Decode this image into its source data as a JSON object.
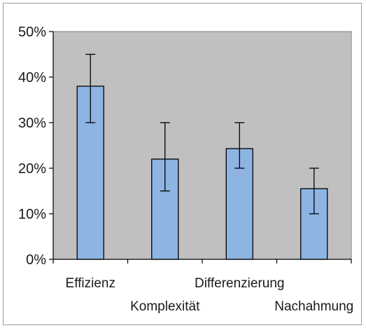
{
  "chart_data": {
    "type": "bar",
    "categories": [
      "Effizienz",
      "Komplexität",
      "Differenzierung",
      "Nachahmung"
    ],
    "values": [
      38,
      22,
      24.3,
      15.5
    ],
    "error_bars": {
      "upper": [
        45,
        30,
        30,
        20
      ],
      "lower": [
        30,
        15,
        20,
        10
      ]
    },
    "ylim": [
      0,
      50
    ],
    "yticks": [
      0,
      10,
      20,
      30,
      40,
      50
    ],
    "ytick_labels": [
      "0%",
      "10%",
      "20%",
      "30%",
      "40%",
      "50%"
    ],
    "title": "",
    "xlabel": "",
    "ylabel": "",
    "grid": false,
    "legend": "none",
    "colors": {
      "plot_background": "#c0c0c0",
      "bar_fill": "#8db4e2",
      "bar_stroke": "#000000",
      "error_bar": "#000000"
    }
  }
}
